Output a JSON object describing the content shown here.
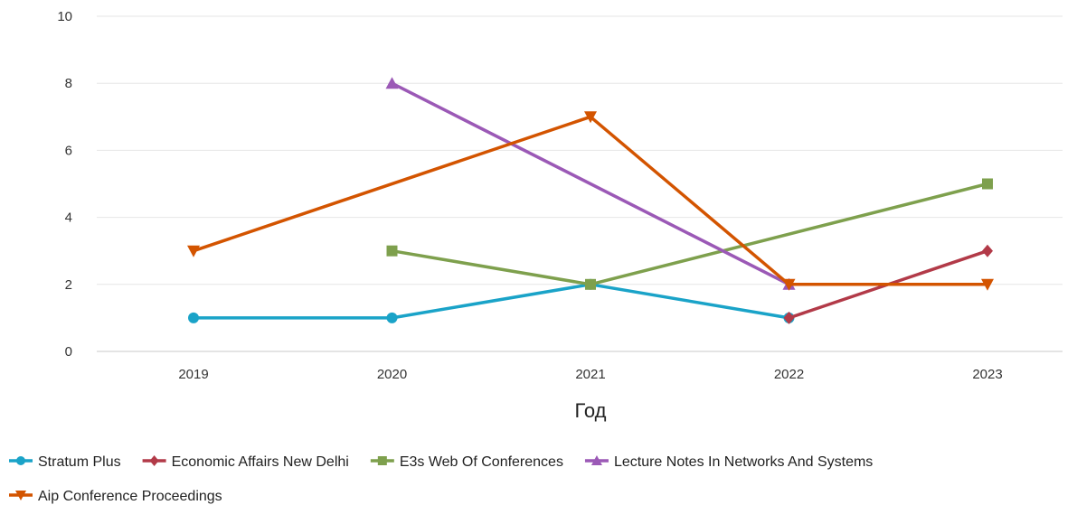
{
  "chart_data": {
    "type": "line",
    "title": "",
    "xlabel": "Год",
    "ylabel": "",
    "categories": [
      "2019",
      "2020",
      "2021",
      "2022",
      "2023"
    ],
    "ylim": [
      0,
      10
    ],
    "yticks": [
      0,
      2,
      4,
      6,
      8,
      10
    ],
    "grid": "horizontal",
    "legend_position": "bottom-left",
    "series": [
      {
        "name": "Stratum Plus",
        "color": "#1aa3c8",
        "marker": "circle",
        "values": [
          1,
          1,
          2,
          1,
          null
        ]
      },
      {
        "name": "Economic Affairs New Delhi",
        "color": "#b23a48",
        "marker": "diamond",
        "values": [
          null,
          null,
          null,
          1,
          3
        ]
      },
      {
        "name": "E3s Web Of Conferences",
        "color": "#7ea04d",
        "marker": "square",
        "values": [
          null,
          3,
          2,
          null,
          5
        ]
      },
      {
        "name": "Lecture Notes In Networks And Systems",
        "color": "#9b59b6",
        "marker": "triangle-up",
        "values": [
          null,
          8,
          null,
          2,
          null
        ]
      },
      {
        "name": "Aip Conference Proceedings",
        "color": "#d35400",
        "marker": "triangle-down",
        "values": [
          3,
          null,
          7,
          2,
          2
        ]
      }
    ]
  }
}
